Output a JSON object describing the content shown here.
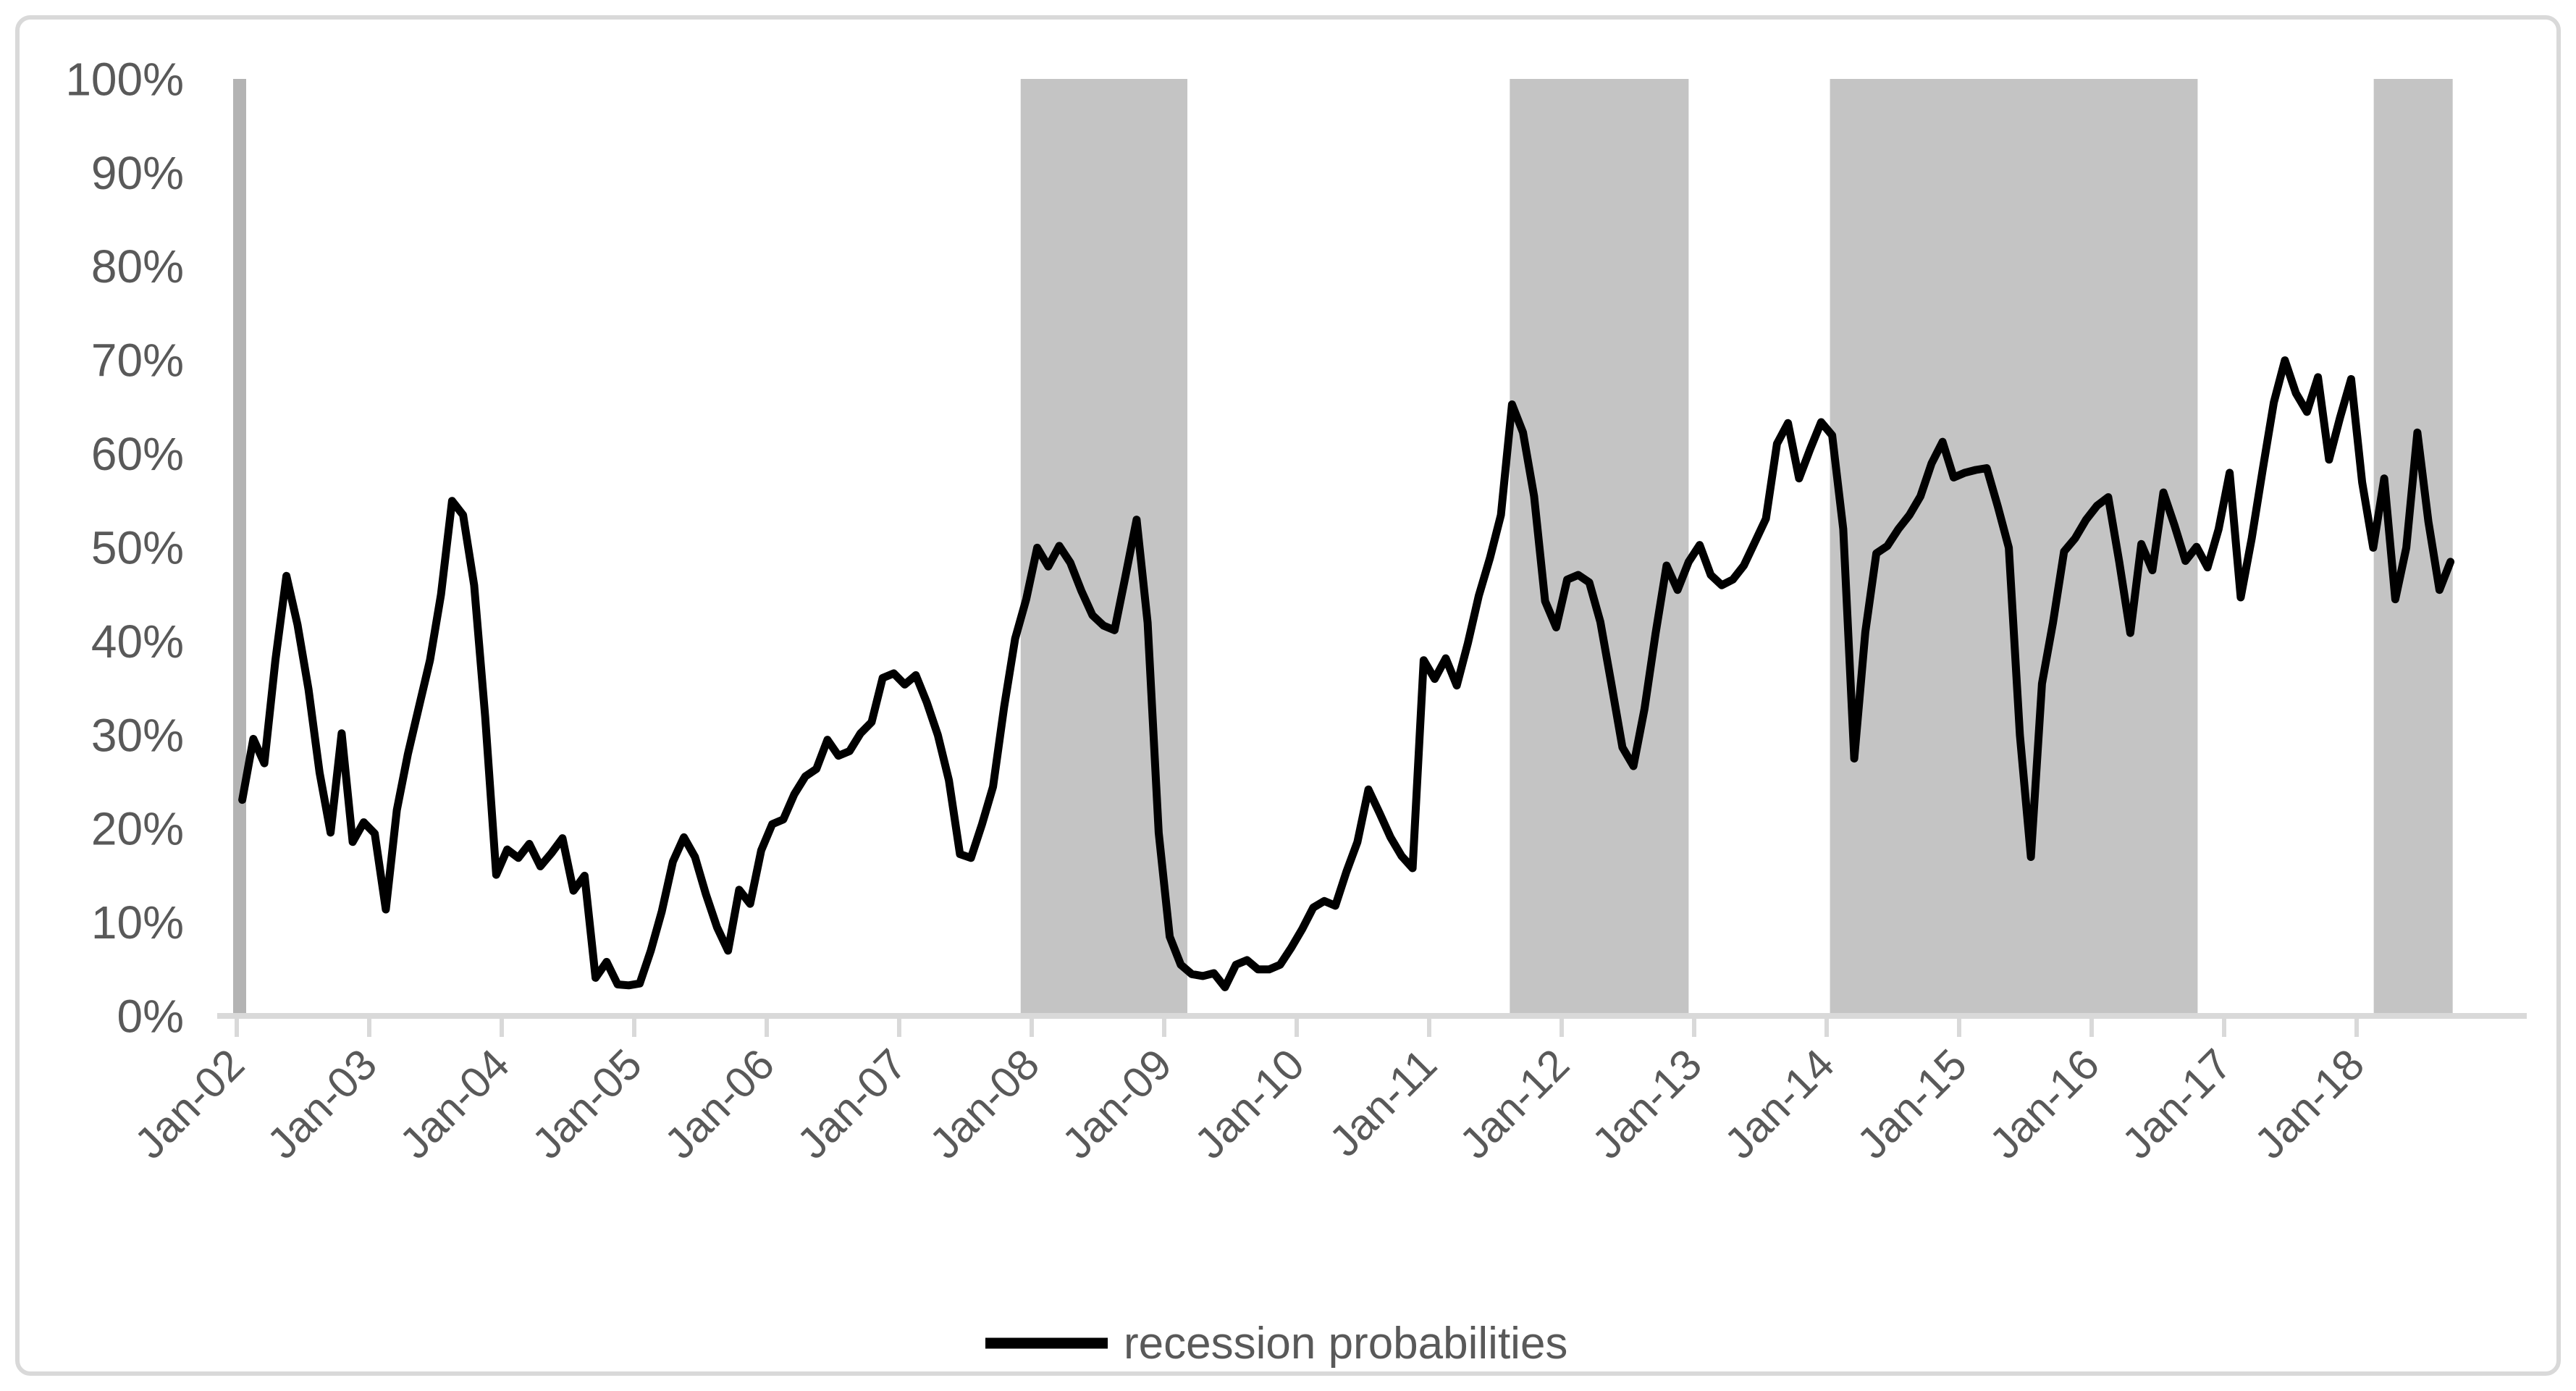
{
  "colors": {
    "line": "#000000",
    "recession_band": "#C4C4C4",
    "axis_bar": "#B3B3B3",
    "axis_line": "#D9D9D9",
    "label_text": "#595959",
    "border": "#D9D9D9",
    "background": "#FFFFFF"
  },
  "legend": {
    "label": "recession probabilities"
  },
  "chart_data": {
    "type": "line",
    "title": "",
    "xlabel": "",
    "ylabel": "",
    "ylim": [
      0,
      100
    ],
    "grid": false,
    "legend_position": "bottom-center",
    "y_tick_labels": [
      "100%",
      "90%",
      "80%",
      "70%",
      "60%",
      "50%",
      "40%",
      "30%",
      "20%",
      "10%",
      "0%"
    ],
    "y_tick_values": [
      100,
      90,
      80,
      70,
      60,
      50,
      40,
      30,
      20,
      10,
      0
    ],
    "x_tick_labels": [
      "Jan-02",
      "Jan-03",
      "Jan-04",
      "Jan-05",
      "Jan-06",
      "Jan-07",
      "Jan-08",
      "Jan-09",
      "Jan-10",
      "Jan-11",
      "Jan-12",
      "Jan-13",
      "Jan-14",
      "Jan-15",
      "Jan-16",
      "Jan-17",
      "Jan-18"
    ],
    "months_per_tick": 12,
    "start_month": "2002-01",
    "end_month": "2018-09",
    "series": [
      {
        "name": "recession probabilities",
        "unit": "%",
        "values": [
          23.1,
          29.6,
          27,
          38,
          47,
          41.8,
          34.9,
          26,
          19.6,
          30.2,
          18.6,
          20.7,
          19.5,
          11.4,
          22,
          28,
          33,
          38,
          45,
          55,
          53.5,
          46,
          32,
          15.1,
          17.8,
          16.9,
          18.4,
          16,
          17.4,
          19,
          13.4,
          15,
          4.1,
          5.8,
          3.4,
          3.3,
          3.5,
          7,
          11.2,
          16.5,
          19.1,
          17,
          13,
          9.5,
          7,
          13.5,
          12,
          17.7,
          20.5,
          21,
          23.7,
          25.6,
          26.4,
          29.5,
          27.8,
          28.3,
          30.2,
          31.4,
          36.1,
          36.6,
          35.4,
          36.4,
          33.5,
          30,
          25.2,
          17.3,
          16.9,
          20.5,
          24.5,
          33,
          40.3,
          44.5,
          50,
          48,
          50.2,
          48.4,
          45.4,
          42.8,
          41.7,
          41.2,
          47,
          53,
          42,
          19.6,
          8.5,
          5.5,
          4.5,
          4.3,
          4.6,
          3.1,
          5.5,
          6,
          5,
          5,
          5.5,
          7.3,
          9.3,
          11.6,
          12.3,
          11.8,
          15.4,
          18.6,
          24.2,
          21.7,
          19.1,
          17.1,
          15.8,
          38,
          36,
          38.2,
          35.3,
          39.8,
          44.9,
          48.9,
          53.5,
          65.3,
          62.3,
          55.5,
          44.3,
          41.5,
          46.6,
          47.1,
          46.3,
          42.1,
          35.5,
          28.7,
          26.7,
          32.8,
          40.8,
          48.1,
          45.5,
          48.5,
          50.3,
          47.1,
          46,
          46.6,
          48.1,
          50.6,
          53.1,
          61.1,
          63.3,
          57.4,
          60.5,
          63.4,
          62,
          52,
          27.5,
          41,
          49.4,
          50.2,
          52,
          53.5,
          55.5,
          59,
          61.3,
          57.5,
          58,
          58.3,
          58.5,
          54.4,
          50,
          30,
          17,
          35.5,
          42,
          49.6,
          51,
          53,
          54.5,
          55.4,
          48.5,
          40.9,
          50.4,
          47.6,
          55.9,
          52.4,
          48.6,
          50.1,
          47.9,
          52,
          58,
          44.7,
          51,
          58.4,
          65.5,
          70,
          66.5,
          64.5,
          68.2,
          59.4,
          63.9,
          68,
          57,
          50,
          57.4,
          44.5,
          50,
          62.3,
          52.8,
          45.5,
          48.5
        ]
      }
    ],
    "recession_bands_month_index": [
      {
        "from": 71.0,
        "to": 86.1,
        "approx": "Dec-2007 to Feb-2009"
      },
      {
        "from": 115.3,
        "to": 131.5,
        "approx": "Aug-2011 to Nov-2012"
      },
      {
        "from": 144.3,
        "to": 177.6,
        "approx": "Jan-2014 to Oct-2016"
      },
      {
        "from": 193.55,
        "to": 200.7,
        "approx": "Feb-2018 to Sep-2018"
      }
    ]
  }
}
